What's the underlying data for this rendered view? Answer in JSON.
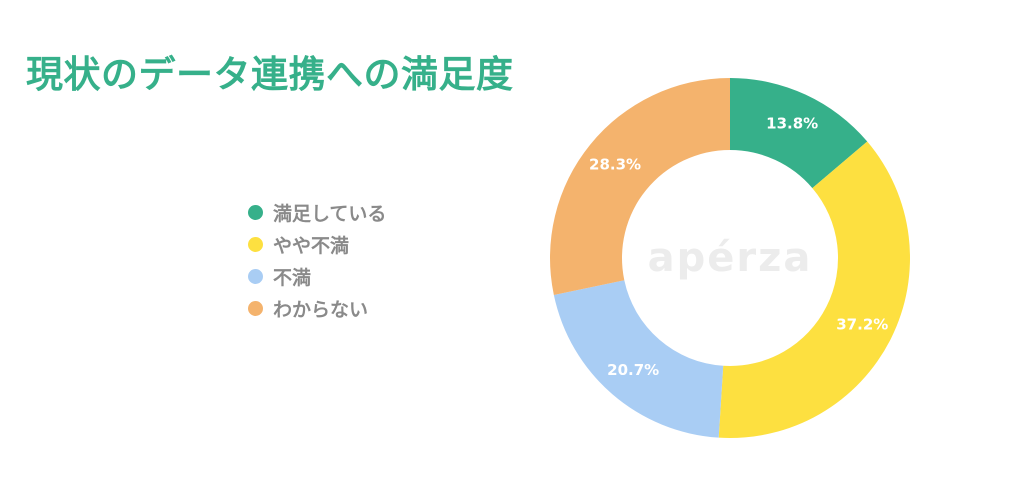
{
  "title": "現状のデータ連携への満足度",
  "colors": {
    "title": "#36b08a",
    "legend_text": "#8a8a8a"
  },
  "watermark": "apérza",
  "chart_data": {
    "type": "pie",
    "donut": true,
    "start_angle_deg": 0,
    "direction": "clockwise",
    "categories": [
      "満足している",
      "やや不満",
      "不満",
      "わからない"
    ],
    "values": [
      13.8,
      37.2,
      20.7,
      28.3
    ],
    "value_labels": [
      "13.8%",
      "37.2%",
      "20.7%",
      "28.3%"
    ],
    "colors": [
      "#36b08a",
      "#fde040",
      "#a9cdf4",
      "#f4b36d"
    ],
    "legend_position": "left"
  }
}
